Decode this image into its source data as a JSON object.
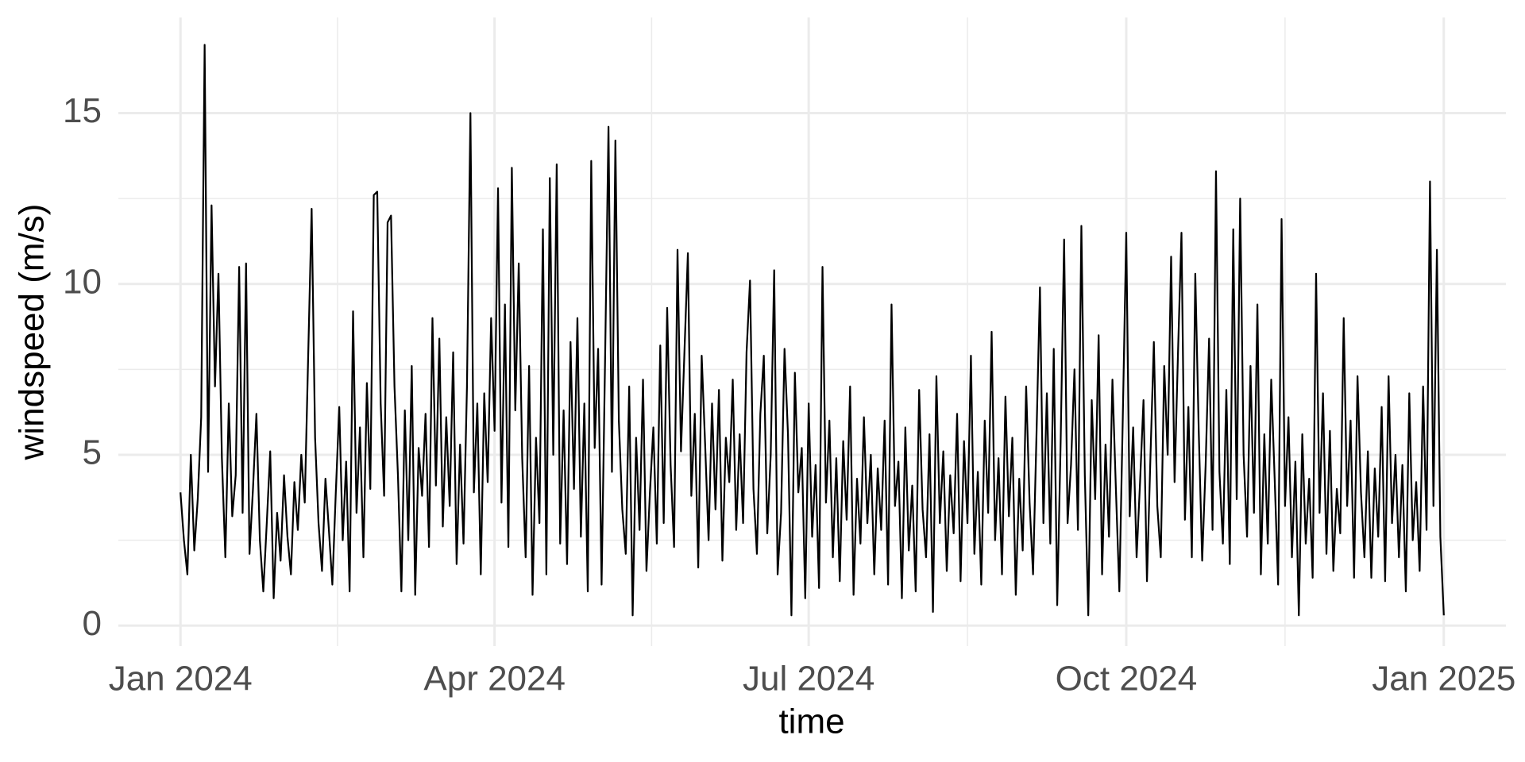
{
  "chart_data": {
    "type": "line",
    "x_label": "time",
    "y_label": "windspeed (m/s)",
    "xlim": [
      -18,
      384
    ],
    "ylim": [
      -0.6,
      17.8
    ],
    "xticks": [
      {
        "value": 0,
        "label": "Jan 2024"
      },
      {
        "value": 91,
        "label": "Apr 2024"
      },
      {
        "value": 182,
        "label": "Jul 2024"
      },
      {
        "value": 274,
        "label": "Oct 2024"
      },
      {
        "value": 366,
        "label": "Jan 2025"
      }
    ],
    "yticks": [
      0,
      5,
      10,
      15
    ],
    "grid": true,
    "series": [
      {
        "color": "#000000",
        "x": [
          0,
          1,
          2,
          3,
          4,
          5,
          6,
          7,
          8,
          9,
          10,
          11,
          12,
          13,
          14,
          15,
          16,
          17,
          18,
          19,
          20,
          21,
          22,
          23,
          24,
          25,
          26,
          27,
          28,
          29,
          30,
          31,
          32,
          33,
          34,
          35,
          36,
          37,
          38,
          39,
          40,
          41,
          42,
          43,
          44,
          45,
          46,
          47,
          48,
          49,
          50,
          51,
          52,
          53,
          54,
          55,
          56,
          57,
          58,
          59,
          60,
          61,
          62,
          63,
          64,
          65,
          66,
          67,
          68,
          69,
          70,
          71,
          72,
          73,
          74,
          75,
          76,
          77,
          78,
          79,
          80,
          81,
          82,
          83,
          84,
          85,
          86,
          87,
          88,
          89,
          90,
          91,
          92,
          93,
          94,
          95,
          96,
          97,
          98,
          99,
          100,
          101,
          102,
          103,
          104,
          105,
          106,
          107,
          108,
          109,
          110,
          111,
          112,
          113,
          114,
          115,
          116,
          117,
          118,
          119,
          120,
          121,
          122,
          123,
          124,
          125,
          126,
          127,
          128,
          129,
          130,
          131,
          132,
          133,
          134,
          135,
          136,
          137,
          138,
          139,
          140,
          141,
          142,
          143,
          144,
          145,
          146,
          147,
          148,
          149,
          150,
          151,
          152,
          153,
          154,
          155,
          156,
          157,
          158,
          159,
          160,
          161,
          162,
          163,
          164,
          165,
          166,
          167,
          168,
          169,
          170,
          171,
          172,
          173,
          174,
          175,
          176,
          177,
          178,
          179,
          180,
          181,
          182,
          183,
          184,
          185,
          186,
          187,
          188,
          189,
          190,
          191,
          192,
          193,
          194,
          195,
          196,
          197,
          198,
          199,
          200,
          201,
          202,
          203,
          204,
          205,
          206,
          207,
          208,
          209,
          210,
          211,
          212,
          213,
          214,
          215,
          216,
          217,
          218,
          219,
          220,
          221,
          222,
          223,
          224,
          225,
          226,
          227,
          228,
          229,
          230,
          231,
          232,
          233,
          234,
          235,
          236,
          237,
          238,
          239,
          240,
          241,
          242,
          243,
          244,
          245,
          246,
          247,
          248,
          249,
          250,
          251,
          252,
          253,
          254,
          255,
          256,
          257,
          258,
          259,
          260,
          261,
          262,
          263,
          264,
          265,
          266,
          267,
          268,
          269,
          270,
          271,
          272,
          273,
          274,
          275,
          276,
          277,
          278,
          279,
          280,
          281,
          282,
          283,
          284,
          285,
          286,
          287,
          288,
          289,
          290,
          291,
          292,
          293,
          294,
          295,
          296,
          297,
          298,
          299,
          300,
          301,
          302,
          303,
          304,
          305,
          306,
          307,
          308,
          309,
          310,
          311,
          312,
          313,
          314,
          315,
          316,
          317,
          318,
          319,
          320,
          321,
          322,
          323,
          324,
          325,
          326,
          327,
          328,
          329,
          330,
          331,
          332,
          333,
          334,
          335,
          336,
          337,
          338,
          339,
          340,
          341,
          342,
          343,
          344,
          345,
          346,
          347,
          348,
          349,
          350,
          351,
          352,
          353,
          354,
          355,
          356,
          357,
          358,
          359,
          360,
          361,
          362,
          363,
          364,
          365,
          366
        ],
        "values": [
          3.9,
          2.5,
          1.5,
          5.0,
          2.2,
          3.7,
          6.1,
          17.0,
          4.5,
          12.3,
          7.0,
          10.3,
          4.9,
          2.0,
          6.5,
          3.2,
          4.4,
          10.5,
          3.3,
          10.6,
          2.1,
          4.0,
          6.2,
          2.5,
          1.0,
          3.0,
          5.1,
          0.8,
          3.3,
          1.9,
          4.4,
          2.6,
          1.5,
          4.2,
          2.8,
          5.0,
          3.6,
          7.9,
          12.2,
          5.5,
          3.0,
          1.6,
          4.3,
          2.8,
          1.2,
          3.9,
          6.4,
          2.5,
          4.8,
          1.0,
          9.2,
          3.3,
          5.8,
          2.0,
          7.1,
          4.0,
          12.6,
          12.7,
          6.5,
          3.8,
          11.8,
          12.0,
          7.0,
          4.4,
          1.0,
          6.3,
          2.5,
          7.6,
          0.9,
          5.2,
          3.8,
          6.2,
          2.3,
          9.0,
          4.1,
          8.4,
          2.9,
          6.1,
          3.5,
          8.0,
          1.8,
          5.3,
          2.4,
          7.0,
          15.0,
          3.9,
          6.5,
          1.5,
          6.8,
          4.2,
          9.0,
          5.7,
          12.8,
          3.6,
          9.4,
          2.3,
          13.4,
          6.3,
          10.6,
          4.9,
          2.0,
          7.6,
          0.9,
          5.5,
          3.0,
          11.6,
          1.5,
          13.1,
          5.0,
          13.5,
          2.4,
          6.3,
          1.8,
          8.3,
          4.0,
          9.0,
          2.6,
          6.5,
          1.0,
          13.6,
          5.2,
          8.1,
          1.2,
          7.7,
          14.6,
          4.5,
          14.2,
          6.0,
          3.4,
          2.1,
          7.0,
          0.3,
          5.5,
          2.8,
          7.2,
          1.6,
          3.9,
          5.8,
          2.4,
          8.2,
          3.0,
          9.3,
          4.7,
          2.3,
          11.0,
          5.1,
          8.0,
          10.9,
          3.8,
          6.2,
          1.7,
          7.9,
          5.3,
          2.5,
          6.5,
          3.4,
          6.9,
          1.9,
          5.5,
          4.2,
          7.2,
          2.8,
          5.6,
          3.0,
          8.0,
          10.1,
          4.0,
          2.1,
          6.2,
          7.9,
          2.7,
          5.0,
          10.4,
          1.5,
          3.3,
          8.1,
          5.6,
          0.3,
          7.4,
          3.9,
          5.2,
          0.8,
          6.5,
          2.6,
          4.7,
          1.1,
          10.5,
          3.6,
          6.0,
          2.0,
          4.9,
          1.3,
          5.4,
          3.1,
          7.0,
          0.9,
          4.3,
          2.4,
          6.1,
          3.0,
          5.0,
          1.5,
          4.6,
          2.8,
          6.0,
          1.2,
          9.4,
          3.5,
          4.8,
          0.8,
          5.8,
          2.2,
          4.1,
          1.0,
          6.9,
          3.4,
          2.0,
          5.6,
          0.4,
          7.3,
          3.0,
          5.1,
          1.6,
          4.4,
          2.7,
          6.2,
          1.3,
          5.4,
          3.0,
          7.9,
          2.1,
          4.5,
          1.2,
          6.0,
          3.3,
          8.6,
          2.5,
          4.9,
          1.5,
          6.7,
          3.2,
          5.5,
          0.9,
          4.3,
          2.2,
          7.0,
          3.6,
          1.5,
          5.6,
          9.9,
          3.0,
          6.8,
          2.4,
          8.1,
          0.6,
          5.4,
          11.3,
          3.0,
          4.7,
          7.5,
          2.8,
          11.7,
          4.4,
          0.3,
          6.6,
          3.7,
          8.5,
          1.5,
          5.3,
          2.6,
          7.2,
          4.0,
          1.0,
          6.1,
          11.5,
          3.2,
          5.8,
          2.0,
          4.2,
          6.6,
          1.3,
          4.9,
          8.3,
          3.5,
          2.0,
          7.6,
          5.0,
          10.8,
          4.2,
          8.0,
          11.5,
          3.1,
          6.4,
          2.0,
          10.3,
          5.7,
          1.9,
          4.7,
          8.4,
          2.8,
          13.3,
          4.5,
          2.4,
          6.9,
          1.8,
          11.6,
          3.7,
          12.5,
          5.0,
          2.6,
          7.6,
          3.3,
          9.4,
          1.5,
          5.6,
          2.4,
          7.2,
          4.3,
          1.2,
          11.9,
          3.5,
          6.1,
          2.0,
          4.8,
          0.3,
          5.6,
          2.4,
          4.3,
          1.4,
          10.3,
          3.3,
          6.8,
          2.1,
          5.7,
          1.6,
          4.0,
          2.7,
          9.0,
          3.5,
          6.0,
          1.4,
          7.3,
          3.9,
          2.0,
          5.1,
          1.4,
          4.6,
          2.6,
          6.4,
          1.3,
          7.3,
          3.0,
          5.0,
          2.0,
          4.7,
          1.0,
          6.8,
          2.5,
          4.2,
          1.6,
          7.0,
          2.8,
          13.0,
          3.5,
          11.0,
          2.6,
          0.3
        ]
      }
    ]
  }
}
